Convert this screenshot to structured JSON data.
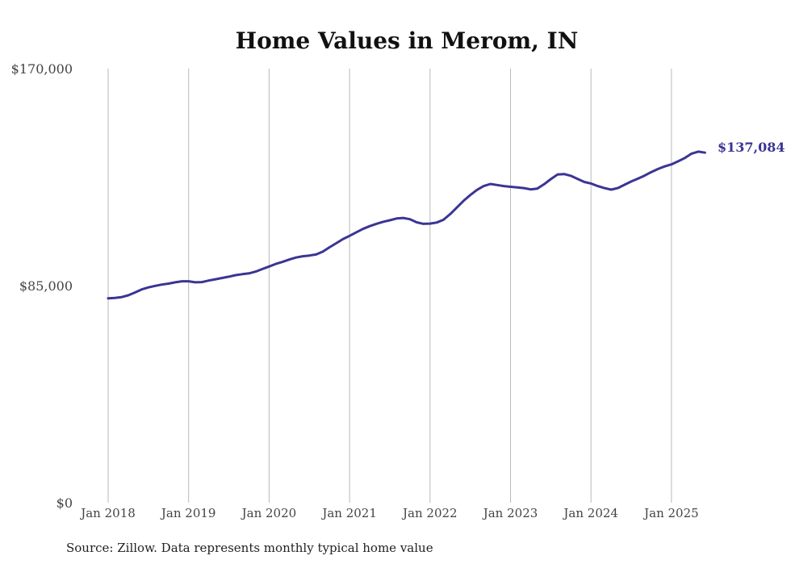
{
  "chart_data": {
    "type": "line",
    "title": "Home Values in Merom, IN",
    "source": "Source: Zillow. Data represents monthly typical home value",
    "ylim": [
      0,
      170000
    ],
    "y_ticks": [
      {
        "value": 0,
        "label": "$0"
      },
      {
        "value": 85000,
        "label": "$85,000"
      },
      {
        "value": 170000,
        "label": "$170,000"
      }
    ],
    "x_ticks": [
      {
        "date": "2018-01",
        "label": "Jan 2018"
      },
      {
        "date": "2019-01",
        "label": "Jan 2019"
      },
      {
        "date": "2020-01",
        "label": "Jan 2020"
      },
      {
        "date": "2021-01",
        "label": "Jan 2021"
      },
      {
        "date": "2022-01",
        "label": "Jan 2022"
      },
      {
        "date": "2023-01",
        "label": "Jan 2023"
      },
      {
        "date": "2024-01",
        "label": "Jan 2024"
      },
      {
        "date": "2025-01",
        "label": "Jan 2025"
      }
    ],
    "grid": {
      "vertical": true,
      "horizontal": false
    },
    "line_color": "#3a3593",
    "end_label": "$137,084",
    "series": [
      {
        "points": [
          [
            "2018-01",
            80000
          ],
          [
            "2018-02",
            80200
          ],
          [
            "2018-03",
            80500
          ],
          [
            "2018-04",
            81200
          ],
          [
            "2018-05",
            82300
          ],
          [
            "2018-06",
            83500
          ],
          [
            "2018-07",
            84300
          ],
          [
            "2018-08",
            84900
          ],
          [
            "2018-09",
            85400
          ],
          [
            "2018-10",
            85800
          ],
          [
            "2018-11",
            86300
          ],
          [
            "2018-12",
            86700
          ],
          [
            "2019-01",
            86700
          ],
          [
            "2019-02",
            86300
          ],
          [
            "2019-03",
            86400
          ],
          [
            "2019-04",
            87000
          ],
          [
            "2019-05",
            87500
          ],
          [
            "2019-06",
            88000
          ],
          [
            "2019-07",
            88500
          ],
          [
            "2019-08",
            89100
          ],
          [
            "2019-09",
            89500
          ],
          [
            "2019-10",
            89800
          ],
          [
            "2019-11",
            90500
          ],
          [
            "2019-12",
            91500
          ],
          [
            "2020-01",
            92500
          ],
          [
            "2020-02",
            93500
          ],
          [
            "2020-03",
            94300
          ],
          [
            "2020-04",
            95200
          ],
          [
            "2020-05",
            96000
          ],
          [
            "2020-06",
            96500
          ],
          [
            "2020-07",
            96800
          ],
          [
            "2020-08",
            97200
          ],
          [
            "2020-09",
            98300
          ],
          [
            "2020-10",
            100000
          ],
          [
            "2020-11",
            101600
          ],
          [
            "2020-12",
            103200
          ],
          [
            "2021-01",
            104500
          ],
          [
            "2021-02",
            105900
          ],
          [
            "2021-03",
            107200
          ],
          [
            "2021-04",
            108300
          ],
          [
            "2021-05",
            109200
          ],
          [
            "2021-06",
            110000
          ],
          [
            "2021-07",
            110600
          ],
          [
            "2021-08",
            111300
          ],
          [
            "2021-09",
            111500
          ],
          [
            "2021-10",
            111000
          ],
          [
            "2021-11",
            109800
          ],
          [
            "2021-12",
            109200
          ],
          [
            "2022-01",
            109300
          ],
          [
            "2022-02",
            109700
          ],
          [
            "2022-03",
            110800
          ],
          [
            "2022-04",
            113000
          ],
          [
            "2022-05",
            115600
          ],
          [
            "2022-06",
            118200
          ],
          [
            "2022-07",
            120500
          ],
          [
            "2022-08",
            122500
          ],
          [
            "2022-09",
            124000
          ],
          [
            "2022-10",
            124800
          ],
          [
            "2022-11",
            124400
          ],
          [
            "2022-12",
            124000
          ],
          [
            "2023-01",
            123700
          ],
          [
            "2023-02",
            123500
          ],
          [
            "2023-03",
            123200
          ],
          [
            "2023-04",
            122700
          ],
          [
            "2023-05",
            123000
          ],
          [
            "2023-06",
            124700
          ],
          [
            "2023-07",
            126700
          ],
          [
            "2023-08",
            128500
          ],
          [
            "2023-09",
            128700
          ],
          [
            "2023-10",
            128000
          ],
          [
            "2023-11",
            126800
          ],
          [
            "2023-12",
            125600
          ],
          [
            "2024-01",
            125000
          ],
          [
            "2024-02",
            124000
          ],
          [
            "2024-03",
            123200
          ],
          [
            "2024-04",
            122600
          ],
          [
            "2024-05",
            123200
          ],
          [
            "2024-06",
            124500
          ],
          [
            "2024-07",
            125800
          ],
          [
            "2024-08",
            126900
          ],
          [
            "2024-09",
            128100
          ],
          [
            "2024-10",
            129500
          ],
          [
            "2024-11",
            130700
          ],
          [
            "2024-12",
            131700
          ],
          [
            "2025-01",
            132500
          ],
          [
            "2025-02",
            133700
          ],
          [
            "2025-03",
            135000
          ],
          [
            "2025-04",
            136700
          ],
          [
            "2025-05",
            137500
          ],
          [
            "2025-06",
            137084
          ]
        ]
      }
    ]
  }
}
